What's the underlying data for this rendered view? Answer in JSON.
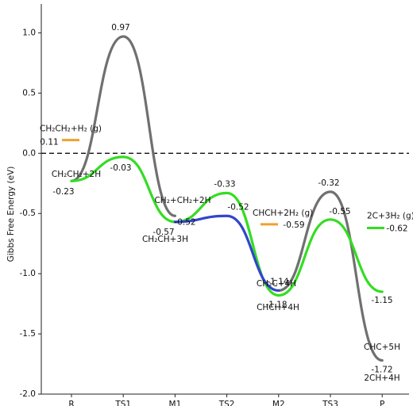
{
  "chart_data": {
    "type": "energy-profile",
    "y_label": "Gibbs Free Energy   (eV)",
    "categories": [
      "R",
      "TS1",
      "M1",
      "TS2",
      "M2",
      "TS3",
      "P"
    ],
    "ylim": [
      -2.0,
      1.24
    ],
    "yticks": [
      {
        "value": -2.0,
        "label": "-2.0"
      },
      -1.5,
      {
        "value": -1.0,
        "label": "-1.0"
      },
      -0.5,
      {
        "value": 0.0,
        "label": "0.0"
      },
      0.5,
      {
        "value": 1.0,
        "label": "1.0"
      }
    ],
    "hlines": [
      0
    ],
    "series": [
      {
        "color": "#707070",
        "values": [
          -0.23,
          0.97,
          -0.52,
          null,
          -1.14,
          -0.32,
          -1.72
        ]
      },
      {
        "color": "#33dd22",
        "values": [
          -0.23,
          -0.03,
          -0.57,
          -0.33,
          -1.18,
          -0.55,
          -1.15
        ]
      },
      {
        "color": "#3344cc",
        "values": [
          null,
          null,
          -0.57,
          -0.52,
          -1.14,
          null,
          null
        ]
      }
    ],
    "extra_levels": [
      {
        "name": "CH₂CH₂+H₂ (g)",
        "value": 0.11,
        "color": "#f0a030"
      },
      {
        "name": "CHCH+2H₂ (g)",
        "value": -0.59,
        "color": "#f0a030"
      },
      {
        "name": "2C+3H₂ (g)",
        "value": -0.62,
        "color": "#33dd22"
      }
    ],
    "annotations": [
      "CH₂CH₂+2H",
      "CH₂+CH₂+2H",
      "CH₂CH+3H",
      "CH₂C+4H",
      "CHCH+4H",
      "CHC+5H",
      "2CH+4H"
    ]
  }
}
